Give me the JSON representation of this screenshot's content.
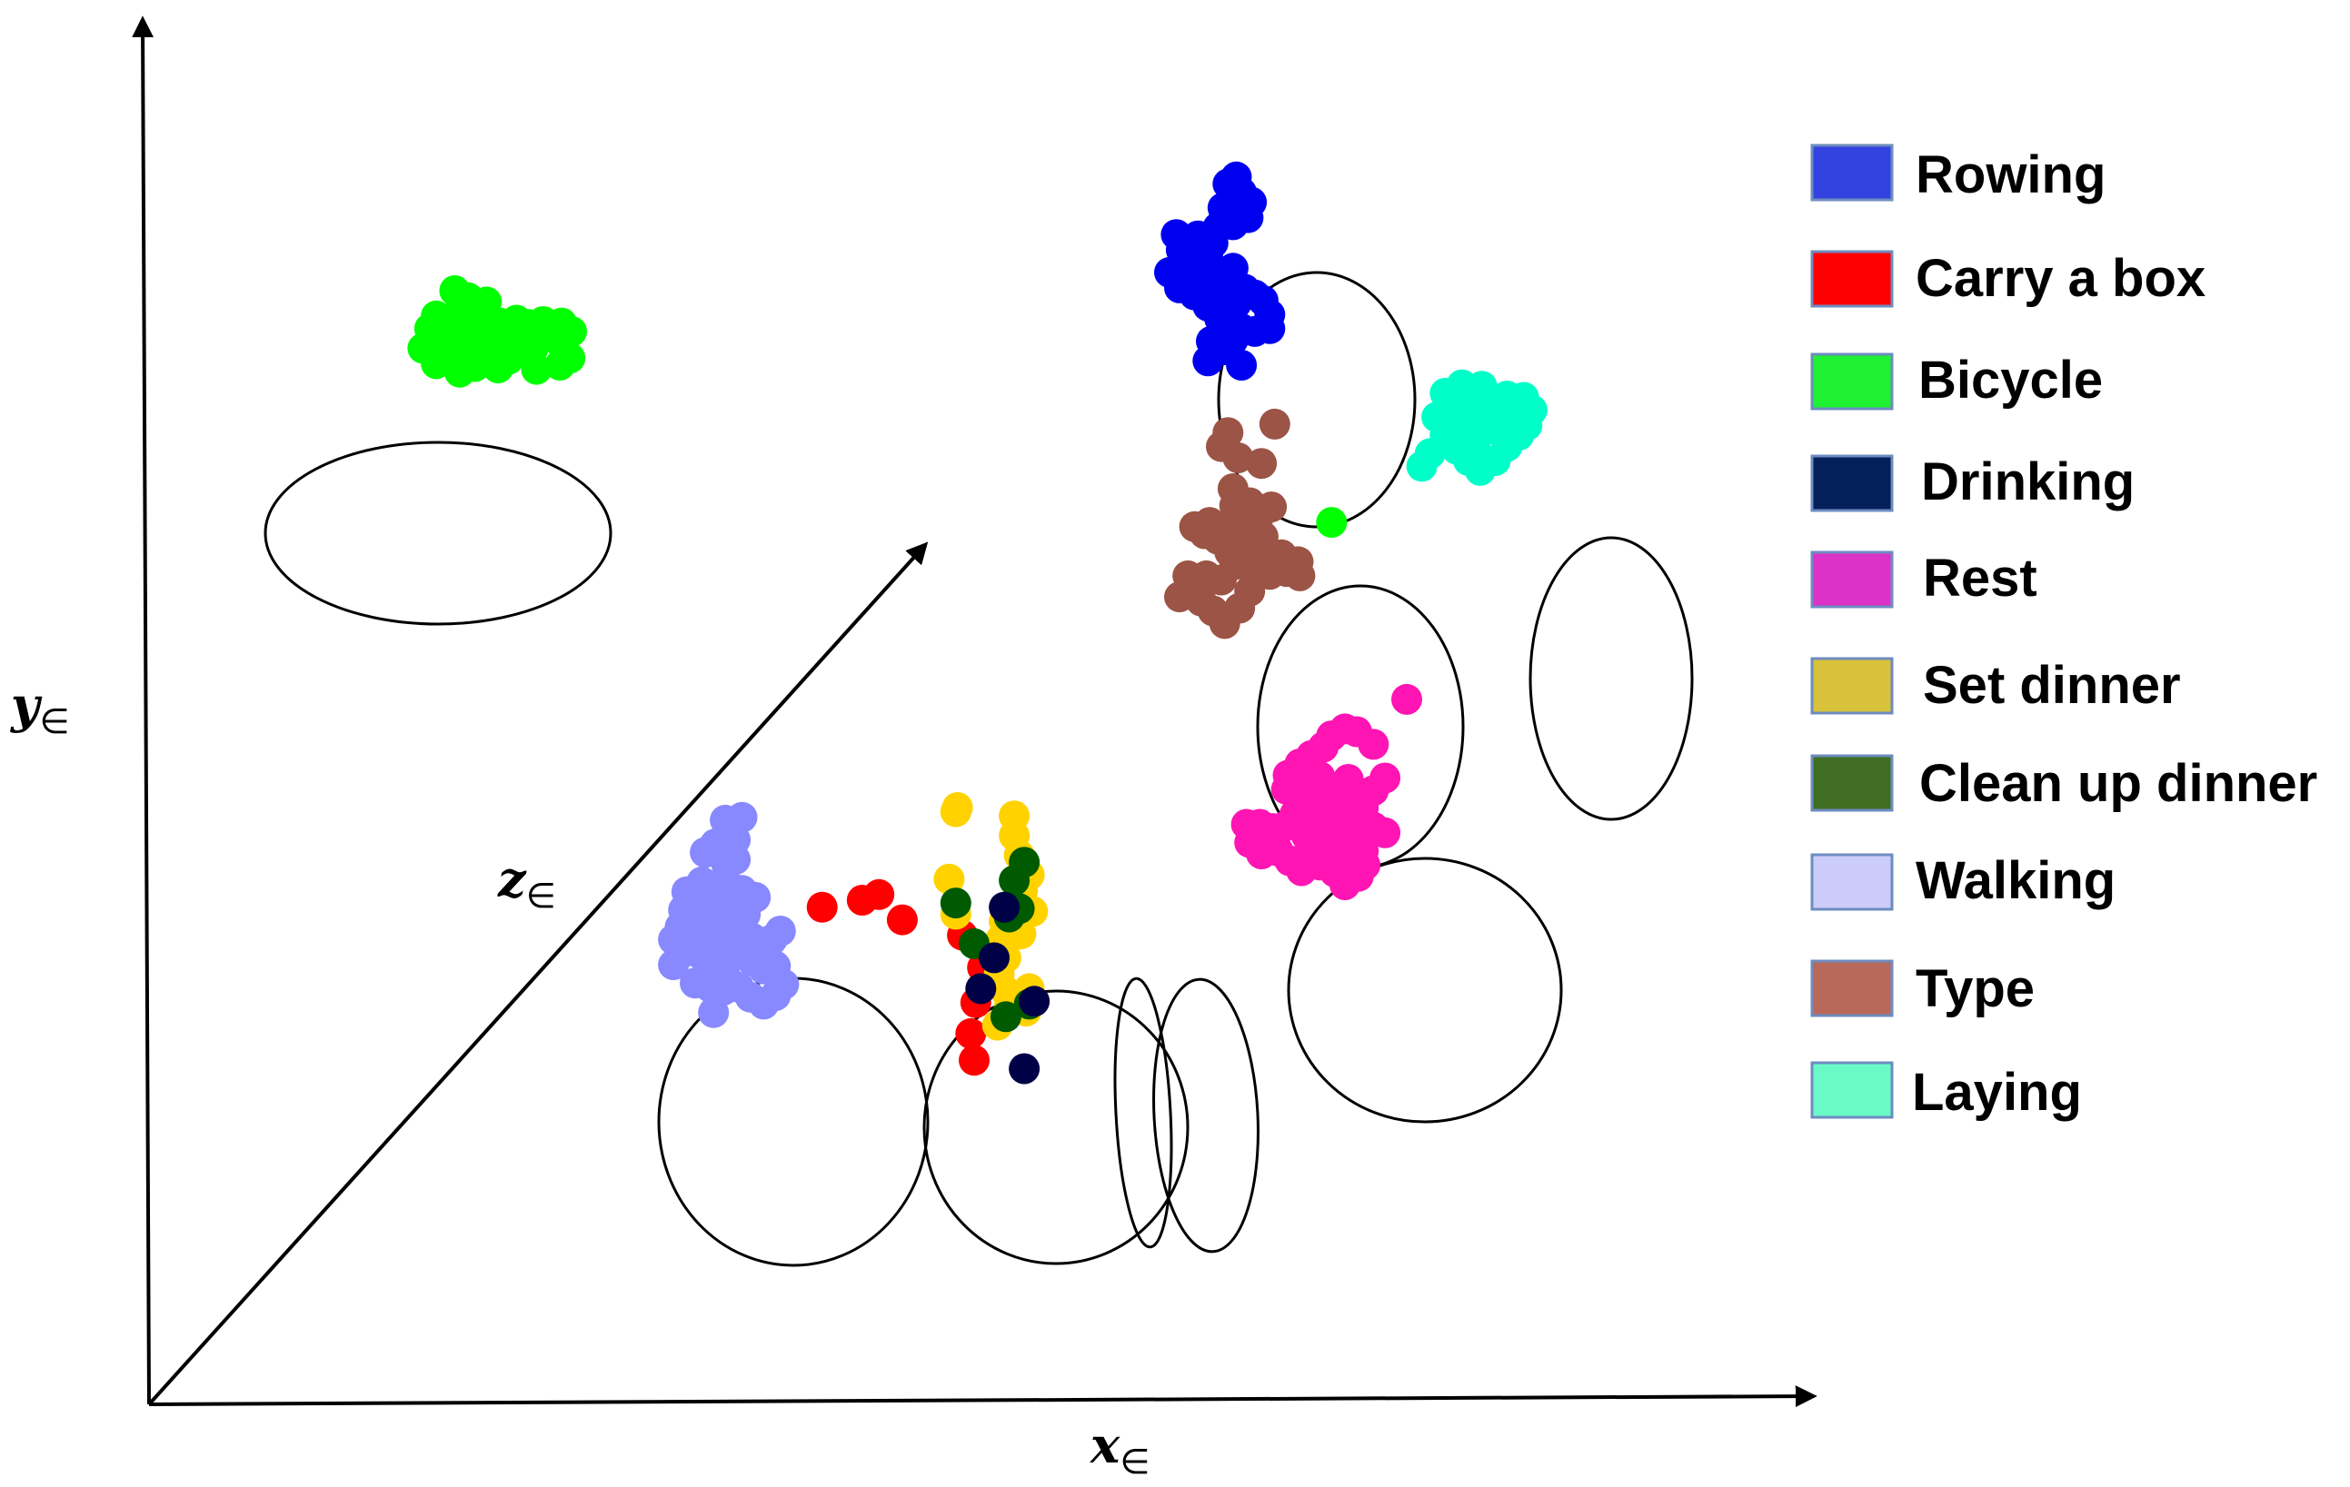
{
  "chart_data": {
    "type": "scatter",
    "title": "",
    "xlabel": "x",
    "ylabel": "y",
    "zlabel": "z",
    "axis_subscript": "∈",
    "legend_position": "right",
    "legend": [
      {
        "label": "Rowing",
        "color": "#3243E0"
      },
      {
        "label": "Carry a box",
        "color": "#FF0000"
      },
      {
        "label": "Bicycle",
        "color": "#1EF032"
      },
      {
        "label": "Drinking",
        "color": "#03205A"
      },
      {
        "label": "Rest",
        "color": "#DC32C8"
      },
      {
        "label": "Set dinner",
        "color": "#D8C23C"
      },
      {
        "label": "Clean up dinner",
        "color": "#3F6E23"
      },
      {
        "label": "Walking",
        "color": "#CCCCFA"
      },
      {
        "label": "Type",
        "color": "#B8695A"
      },
      {
        "label": "Laying",
        "color": "#6AFAC8"
      }
    ],
    "series": [
      {
        "name": "Rowing",
        "color": "#0000F0",
        "points": [
          [
            0.646,
            0.869
          ],
          [
            0.651,
            0.874
          ],
          [
            0.654,
            0.863
          ],
          [
            0.66,
            0.856
          ],
          [
            0.658,
            0.845
          ],
          [
            0.649,
            0.84
          ],
          [
            0.643,
            0.852
          ],
          [
            0.64,
            0.838
          ],
          [
            0.637,
            0.827
          ],
          [
            0.634,
            0.816
          ],
          [
            0.631,
            0.806
          ],
          [
            0.623,
            0.812
          ],
          [
            0.618,
            0.822
          ],
          [
            0.615,
            0.833
          ],
          [
            0.611,
            0.806
          ],
          [
            0.617,
            0.795
          ],
          [
            0.626,
            0.79
          ],
          [
            0.634,
            0.782
          ],
          [
            0.641,
            0.773
          ],
          [
            0.646,
            0.779
          ],
          [
            0.651,
            0.784
          ],
          [
            0.656,
            0.794
          ],
          [
            0.662,
            0.79
          ],
          [
            0.667,
            0.786
          ],
          [
            0.671,
            0.776
          ],
          [
            0.671,
            0.766
          ],
          [
            0.662,
            0.764
          ],
          [
            0.654,
            0.766
          ],
          [
            0.649,
            0.758
          ],
          [
            0.644,
            0.751
          ],
          [
            0.636,
            0.757
          ],
          [
            0.634,
            0.743
          ],
          [
            0.654,
            0.74
          ],
          [
            0.62,
            0.796
          ],
          [
            0.628,
            0.832
          ],
          [
            0.649,
            0.809
          ],
          [
            0.642,
            0.797
          ]
        ]
      },
      {
        "name": "Bicycle",
        "color": "#00FF00",
        "points": [
          [
            0.202,
            0.785
          ],
          [
            0.197,
            0.779
          ],
          [
            0.191,
            0.788
          ],
          [
            0.183,
            0.793
          ],
          [
            0.187,
            0.784
          ],
          [
            0.172,
            0.775
          ],
          [
            0.176,
            0.764
          ],
          [
            0.18,
            0.75
          ],
          [
            0.19,
            0.749
          ],
          [
            0.2,
            0.748
          ],
          [
            0.21,
            0.75
          ],
          [
            0.215,
            0.757
          ],
          [
            0.225,
            0.764
          ],
          [
            0.23,
            0.752
          ],
          [
            0.238,
            0.76
          ],
          [
            0.247,
            0.755
          ],
          [
            0.253,
            0.764
          ],
          [
            0.247,
            0.77
          ],
          [
            0.236,
            0.771
          ],
          [
            0.227,
            0.769
          ],
          [
            0.22,
            0.772
          ],
          [
            0.21,
            0.77
          ],
          [
            0.204,
            0.762
          ],
          [
            0.194,
            0.765
          ],
          [
            0.186,
            0.77
          ],
          [
            0.177,
            0.757
          ],
          [
            0.168,
            0.766
          ],
          [
            0.164,
            0.752
          ],
          [
            0.172,
            0.741
          ],
          [
            0.186,
            0.735
          ],
          [
            0.195,
            0.739
          ],
          [
            0.209,
            0.738
          ],
          [
            0.215,
            0.744
          ],
          [
            0.232,
            0.737
          ],
          [
            0.246,
            0.74
          ],
          [
            0.252,
            0.745
          ],
          [
            0.22,
            0.75
          ],
          [
            0.201,
            0.756
          ],
          [
            0.19,
            0.757
          ]
        ]
      },
      {
        "name": "Type",
        "color": "#9B5445",
        "points": [
          [
            0.659,
            0.579
          ],
          [
            0.653,
            0.567
          ],
          [
            0.644,
            0.556
          ],
          [
            0.637,
            0.565
          ],
          [
            0.63,
            0.572
          ],
          [
            0.624,
            0.58
          ],
          [
            0.617,
            0.575
          ],
          [
            0.622,
            0.59
          ],
          [
            0.633,
            0.59
          ],
          [
            0.642,
            0.587
          ],
          [
            0.65,
            0.598
          ],
          [
            0.661,
            0.593
          ],
          [
            0.671,
            0.591
          ],
          [
            0.681,
            0.593
          ],
          [
            0.689,
            0.59
          ],
          [
            0.688,
            0.6
          ],
          [
            0.678,
            0.605
          ],
          [
            0.668,
            0.608
          ],
          [
            0.658,
            0.612
          ],
          [
            0.647,
            0.607
          ],
          [
            0.64,
            0.616
          ],
          [
            0.632,
            0.62
          ],
          [
            0.626,
            0.625
          ],
          [
            0.635,
            0.628
          ],
          [
            0.645,
            0.626
          ],
          [
            0.657,
            0.625
          ],
          [
            0.664,
            0.631
          ],
          [
            0.659,
            0.642
          ],
          [
            0.649,
            0.652
          ],
          [
            0.666,
            0.67
          ],
          [
            0.652,
            0.674
          ],
          [
            0.642,
            0.682
          ],
          [
            0.646,
            0.692
          ],
          [
            0.674,
            0.698
          ],
          [
            0.672,
            0.639
          ],
          [
            0.65,
            0.64
          ],
          [
            0.667,
            0.618
          ]
        ]
      },
      {
        "name": "Bicycle",
        "color": "#00FF00",
        "points": [
          [
            0.708,
            0.628
          ]
        ]
      },
      {
        "name": "Laying",
        "color": "#00FFC8",
        "points": [
          [
            0.797,
            0.7
          ],
          [
            0.79,
            0.709
          ],
          [
            0.783,
            0.7
          ],
          [
            0.776,
            0.69
          ],
          [
            0.783,
            0.68
          ],
          [
            0.79,
            0.672
          ],
          [
            0.797,
            0.665
          ],
          [
            0.806,
            0.672
          ],
          [
            0.813,
            0.682
          ],
          [
            0.82,
            0.69
          ],
          [
            0.825,
            0.697
          ],
          [
            0.828,
            0.708
          ],
          [
            0.823,
            0.717
          ],
          [
            0.813,
            0.718
          ],
          [
            0.804,
            0.712
          ],
          [
            0.798,
            0.725
          ],
          [
            0.79,
            0.72
          ],
          [
            0.781,
            0.713
          ],
          [
            0.771,
            0.703
          ],
          [
            0.776,
            0.72
          ],
          [
            0.786,
            0.726
          ],
          [
            0.812,
            0.698
          ],
          [
            0.806,
            0.694
          ],
          [
            0.82,
            0.706
          ],
          [
            0.789,
            0.694
          ],
          [
            0.794,
            0.685
          ],
          [
            0.767,
            0.677
          ],
          [
            0.762,
            0.668
          ]
        ]
      },
      {
        "name": "Rest",
        "color": "#FF14B4",
        "points": [
          [
            0.733,
            0.47
          ],
          [
            0.723,
            0.479
          ],
          [
            0.716,
            0.481
          ],
          [
            0.708,
            0.476
          ],
          [
            0.703,
            0.468
          ],
          [
            0.696,
            0.462
          ],
          [
            0.689,
            0.456
          ],
          [
            0.682,
            0.448
          ],
          [
            0.681,
            0.438
          ],
          [
            0.688,
            0.43
          ],
          [
            0.696,
            0.425
          ],
          [
            0.704,
            0.42
          ],
          [
            0.712,
            0.418
          ],
          [
            0.716,
            0.41
          ],
          [
            0.72,
            0.402
          ],
          [
            0.727,
            0.394
          ],
          [
            0.728,
            0.384
          ],
          [
            0.724,
            0.376
          ],
          [
            0.716,
            0.37
          ],
          [
            0.71,
            0.379
          ],
          [
            0.701,
            0.384
          ],
          [
            0.694,
            0.392
          ],
          [
            0.69,
            0.38
          ],
          [
            0.683,
            0.387
          ],
          [
            0.676,
            0.394
          ],
          [
            0.671,
            0.4
          ],
          [
            0.666,
            0.392
          ],
          [
            0.659,
            0.4
          ],
          [
            0.657,
            0.413
          ],
          [
            0.665,
            0.413
          ],
          [
            0.673,
            0.41
          ],
          [
            0.681,
            0.412
          ],
          [
            0.686,
            0.42
          ],
          [
            0.694,
            0.436
          ],
          [
            0.701,
            0.447
          ],
          [
            0.711,
            0.437
          ],
          [
            0.719,
            0.43
          ],
          [
            0.727,
            0.425
          ],
          [
            0.733,
            0.437
          ],
          [
            0.74,
            0.446
          ],
          [
            0.753,
            0.502
          ],
          [
            0.74,
            0.407
          ],
          [
            0.733,
            0.411
          ],
          [
            0.718,
            0.445
          ],
          [
            0.706,
            0.4
          ],
          [
            0.711,
            0.39
          ],
          [
            0.701,
            0.43
          ],
          [
            0.693,
            0.405
          ]
        ]
      },
      {
        "name": "Walking",
        "color": "#8888FF",
        "points": [
          [
            0.38,
            0.299
          ],
          [
            0.375,
            0.291
          ],
          [
            0.368,
            0.285
          ],
          [
            0.36,
            0.29
          ],
          [
            0.353,
            0.297
          ],
          [
            0.345,
            0.305
          ],
          [
            0.338,
            0.313
          ],
          [
            0.331,
            0.32
          ],
          [
            0.325,
            0.33
          ],
          [
            0.318,
            0.34
          ],
          [
            0.32,
            0.322
          ],
          [
            0.314,
            0.313
          ],
          [
            0.314,
            0.331
          ],
          [
            0.32,
            0.352
          ],
          [
            0.328,
            0.355
          ],
          [
            0.336,
            0.348
          ],
          [
            0.345,
            0.343
          ],
          [
            0.353,
            0.337
          ],
          [
            0.361,
            0.332
          ],
          [
            0.368,
            0.325
          ],
          [
            0.373,
            0.331
          ],
          [
            0.378,
            0.337
          ],
          [
            0.375,
            0.312
          ],
          [
            0.368,
            0.31
          ],
          [
            0.361,
            0.316
          ],
          [
            0.354,
            0.321
          ],
          [
            0.346,
            0.326
          ],
          [
            0.34,
            0.333
          ],
          [
            0.333,
            0.338
          ],
          [
            0.326,
            0.342
          ],
          [
            0.341,
            0.354
          ],
          [
            0.35,
            0.356
          ],
          [
            0.357,
            0.349
          ],
          [
            0.363,
            0.361
          ],
          [
            0.355,
            0.366
          ],
          [
            0.346,
            0.371
          ],
          [
            0.331,
            0.372
          ],
          [
            0.322,
            0.365
          ],
          [
            0.336,
            0.36
          ],
          [
            0.344,
            0.295
          ],
          [
            0.336,
            0.297
          ],
          [
            0.327,
            0.3
          ],
          [
            0.338,
            0.279
          ],
          [
            0.351,
            0.402
          ],
          [
            0.345,
            0.416
          ],
          [
            0.355,
            0.418
          ],
          [
            0.339,
            0.399
          ],
          [
            0.333,
            0.393
          ],
          [
            0.351,
            0.388
          ],
          [
            0.346,
            0.384
          ]
        ]
      },
      {
        "name": "Carry a box",
        "color": "#FF0000",
        "points": [
          [
            0.403,
            0.354
          ],
          [
            0.427,
            0.359
          ],
          [
            0.437,
            0.363
          ],
          [
            0.451,
            0.345
          ],
          [
            0.487,
            0.334
          ],
          [
            0.5,
            0.324
          ],
          [
            0.499,
            0.311
          ],
          [
            0.495,
            0.286
          ],
          [
            0.492,
            0.264
          ],
          [
            0.494,
            0.245
          ]
        ]
      },
      {
        "name": "Set dinner",
        "color": "#FFD200",
        "points": [
          [
            0.484,
            0.425
          ],
          [
            0.483,
            0.422
          ],
          [
            0.518,
            0.419
          ],
          [
            0.518,
            0.405
          ],
          [
            0.521,
            0.391
          ],
          [
            0.527,
            0.377
          ],
          [
            0.523,
            0.366
          ],
          [
            0.529,
            0.351
          ],
          [
            0.522,
            0.335
          ],
          [
            0.51,
            0.331
          ],
          [
            0.512,
            0.344
          ],
          [
            0.513,
            0.318
          ],
          [
            0.509,
            0.306
          ],
          [
            0.513,
            0.294
          ],
          [
            0.527,
            0.296
          ],
          [
            0.525,
            0.28
          ],
          [
            0.515,
            0.283
          ],
          [
            0.508,
            0.27
          ],
          [
            0.483,
            0.349
          ],
          [
            0.479,
            0.374
          ]
        ]
      },
      {
        "name": "Clean up dinner",
        "color": "#005A00",
        "points": [
          [
            0.524,
            0.386
          ],
          [
            0.518,
            0.373
          ],
          [
            0.483,
            0.357
          ],
          [
            0.494,
            0.328
          ],
          [
            0.515,
            0.347
          ],
          [
            0.527,
            0.285
          ],
          [
            0.513,
            0.276
          ],
          [
            0.521,
            0.353
          ]
        ]
      },
      {
        "name": "Drinking",
        "color": "#000046",
        "points": [
          [
            0.498,
            0.296
          ],
          [
            0.506,
            0.318
          ],
          [
            0.512,
            0.354
          ],
          [
            0.53,
            0.287
          ],
          [
            0.524,
            0.239
          ]
        ]
      }
    ]
  }
}
